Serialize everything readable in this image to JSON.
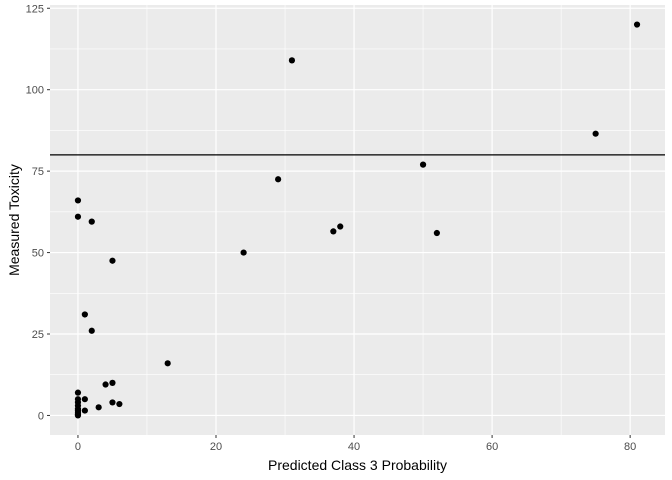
{
  "chart_data": {
    "type": "scatter",
    "xlabel": "Predicted Class 3 Probability",
    "ylabel": "Measured Toxicity",
    "xlim": [
      -4.05,
      85.05
    ],
    "ylim": [
      -6,
      126
    ],
    "x_ticks": [
      0,
      20,
      40,
      60,
      80
    ],
    "x_tick_labels": [
      "0",
      "20",
      "40",
      "60",
      "80"
    ],
    "y_ticks": [
      0,
      25,
      50,
      75,
      100,
      125
    ],
    "y_tick_labels": [
      "0",
      "25",
      "50",
      "75",
      "100",
      "125"
    ],
    "grid": true,
    "reference_line": {
      "orientation": "horizontal",
      "y": 80
    },
    "panel_color": "#ebebeb",
    "point_color": "#000000",
    "points": [
      {
        "x": 81,
        "y": 120
      },
      {
        "x": 31,
        "y": 109
      },
      {
        "x": 75,
        "y": 86.5
      },
      {
        "x": 50,
        "y": 77
      },
      {
        "x": 29,
        "y": 72.5
      },
      {
        "x": 0,
        "y": 66
      },
      {
        "x": 0,
        "y": 61
      },
      {
        "x": 2,
        "y": 59.5
      },
      {
        "x": 38,
        "y": 58
      },
      {
        "x": 37,
        "y": 56.5
      },
      {
        "x": 52,
        "y": 56
      },
      {
        "x": 24,
        "y": 50
      },
      {
        "x": 5,
        "y": 47.5
      },
      {
        "x": 1,
        "y": 31
      },
      {
        "x": 2,
        "y": 26
      },
      {
        "x": 13,
        "y": 16
      },
      {
        "x": 5,
        "y": 10
      },
      {
        "x": 4,
        "y": 9.5
      },
      {
        "x": 0,
        "y": 7
      },
      {
        "x": 1,
        "y": 5
      },
      {
        "x": 0,
        "y": 5
      },
      {
        "x": 0,
        "y": 4
      },
      {
        "x": 5,
        "y": 4
      },
      {
        "x": 6,
        "y": 3.5
      },
      {
        "x": 0,
        "y": 3
      },
      {
        "x": 3,
        "y": 2.5
      },
      {
        "x": 0,
        "y": 2
      },
      {
        "x": 1,
        "y": 1.5
      },
      {
        "x": 0,
        "y": 1.5
      },
      {
        "x": 0,
        "y": 1
      },
      {
        "x": 0,
        "y": 0.5
      },
      {
        "x": 0,
        "y": 0
      },
      {
        "x": 0,
        "y": 0.2
      }
    ]
  }
}
